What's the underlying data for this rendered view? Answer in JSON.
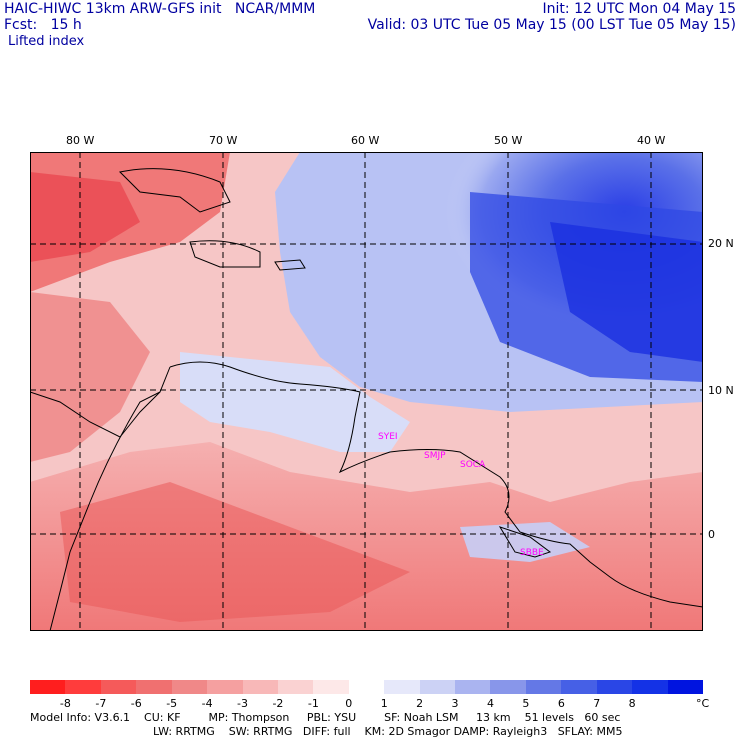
{
  "header": {
    "left1": "HAIC-HIWC 13km ARW-GFS init   NCAR/MMM",
    "left2": "Fcst:   15 h",
    "right1": "Init: 12 UTC Mon 04 May 15",
    "right2": "Valid: 03 UTC Tue 05 May 15 (00 LST Tue 05 May 15)",
    "field": "Lifted index"
  },
  "map": {
    "lon_labels": [
      "80 W",
      "70 W",
      "60 W",
      "50 W",
      "40 W"
    ],
    "lat_labels": [
      "20 N",
      "10 N",
      "0"
    ],
    "stations": [
      "SYEI",
      "SMJP",
      "SOCA",
      "SBBE"
    ],
    "colors": {
      "negative": "#e8404a",
      "neutral": "#ffffff",
      "positive": "#3050e0",
      "station": "#ff00ff"
    }
  },
  "colorbar": {
    "labels": [
      "-8",
      "-7",
      "-6",
      "-5",
      "-4",
      "-3",
      "-2",
      "-1",
      "0",
      "1",
      "2",
      "3",
      "4",
      "5",
      "6",
      "7",
      "8"
    ],
    "unit": "°C",
    "colors": [
      "#ff1e1e",
      "#ff3c3c",
      "#f55a5a",
      "#f07070",
      "#f08888",
      "#f5a0a0",
      "#f8b8b8",
      "#fad2d2",
      "#fde8e8",
      "#ffffff",
      "#e6e8fa",
      "#ccd2f5",
      "#aab4f0",
      "#8896ea",
      "#6478e6",
      "#4660e6",
      "#2a46e6",
      "#1432e6",
      "#0014e0"
    ]
  },
  "footer": {
    "line1": "Model Info: V3.6.1    CU: KF        MP: Thompson     PBL: YSU        SF: Noah LSM     13 km    51 levels   60 sec",
    "line2": "LW: RRTMG    SW: RRTMG   DIFF: full    KM: 2D Smagor DAMP: Rayleigh3   SFLAY: MM5"
  }
}
